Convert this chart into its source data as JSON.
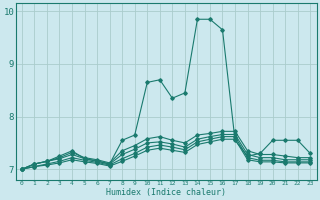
{
  "xlabel": "Humidex (Indice chaleur)",
  "bg_color": "#cce8ee",
  "grid_color": "#aacccc",
  "line_color": "#1a7a6e",
  "x_values": [
    0,
    1,
    2,
    3,
    4,
    5,
    6,
    7,
    8,
    9,
    10,
    11,
    12,
    13,
    14,
    15,
    16,
    17,
    18,
    19,
    20,
    21,
    22,
    23
  ],
  "series": [
    [
      7.0,
      7.1,
      7.15,
      7.25,
      7.35,
      7.2,
      7.15,
      7.1,
      7.55,
      7.65,
      8.65,
      8.7,
      8.35,
      8.45,
      9.85,
      9.85,
      9.65,
      7.55,
      7.25,
      7.3,
      7.55,
      7.55,
      7.55,
      7.3
    ],
    [
      7.0,
      7.1,
      7.15,
      7.22,
      7.32,
      7.22,
      7.18,
      7.12,
      7.35,
      7.45,
      7.58,
      7.62,
      7.55,
      7.5,
      7.65,
      7.68,
      7.72,
      7.72,
      7.35,
      7.28,
      7.28,
      7.25,
      7.22,
      7.22
    ],
    [
      7.0,
      7.1,
      7.15,
      7.2,
      7.28,
      7.2,
      7.16,
      7.1,
      7.28,
      7.38,
      7.5,
      7.52,
      7.48,
      7.42,
      7.57,
      7.62,
      7.66,
      7.66,
      7.28,
      7.22,
      7.22,
      7.18,
      7.18,
      7.18
    ],
    [
      7.0,
      7.05,
      7.1,
      7.15,
      7.22,
      7.17,
      7.13,
      7.08,
      7.2,
      7.3,
      7.42,
      7.46,
      7.42,
      7.37,
      7.52,
      7.57,
      7.62,
      7.62,
      7.22,
      7.17,
      7.17,
      7.14,
      7.14,
      7.14
    ],
    [
      7.0,
      7.05,
      7.08,
      7.12,
      7.18,
      7.14,
      7.11,
      7.06,
      7.15,
      7.25,
      7.36,
      7.4,
      7.36,
      7.32,
      7.47,
      7.52,
      7.57,
      7.57,
      7.18,
      7.14,
      7.14,
      7.12,
      7.12,
      7.12
    ]
  ],
  "ylim": [
    6.8,
    10.15
  ],
  "yticks": [
    7,
    8,
    9,
    10
  ],
  "xticks": [
    0,
    1,
    2,
    3,
    4,
    5,
    6,
    7,
    8,
    9,
    10,
    11,
    12,
    13,
    14,
    15,
    16,
    17,
    18,
    19,
    20,
    21,
    22,
    23
  ]
}
